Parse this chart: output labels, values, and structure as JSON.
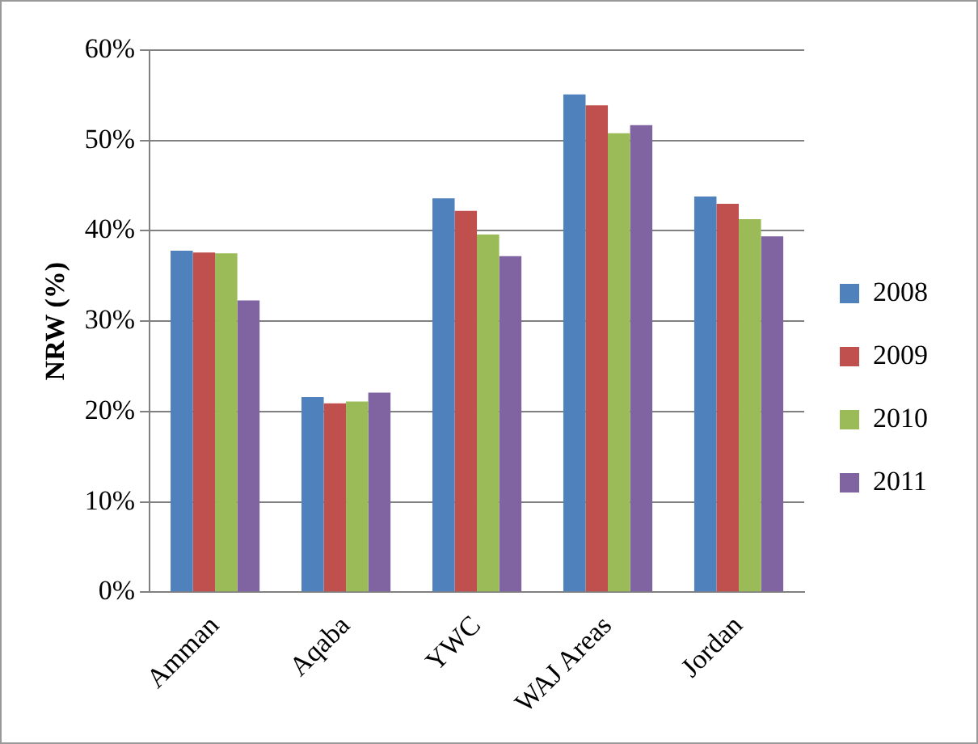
{
  "chart_data": {
    "type": "bar",
    "ylabel": "NRW (%)",
    "categories": [
      "Amman",
      "Aqaba",
      "YWC",
      "WAJ Areas",
      "Jordan"
    ],
    "series": [
      {
        "name": "2008",
        "color": "#4f81bd",
        "values": [
          37.8,
          21.6,
          43.6,
          55.1,
          43.8
        ]
      },
      {
        "name": "2009",
        "color": "#c0504d",
        "values": [
          37.6,
          20.9,
          42.2,
          53.9,
          43.0
        ]
      },
      {
        "name": "2010",
        "color": "#9bbb59",
        "values": [
          37.5,
          21.1,
          39.6,
          50.8,
          41.3
        ]
      },
      {
        "name": "2011",
        "color": "#8064a2",
        "values": [
          32.3,
          22.1,
          37.2,
          51.7,
          39.4
        ]
      }
    ],
    "ylim": [
      0,
      60
    ],
    "yticks": [
      {
        "value": 0,
        "label": "0%"
      },
      {
        "value": 10,
        "label": "10%"
      },
      {
        "value": 20,
        "label": "20%"
      },
      {
        "value": 30,
        "label": "30%"
      },
      {
        "value": 40,
        "label": "40%"
      },
      {
        "value": 50,
        "label": "50%"
      },
      {
        "value": 60,
        "label": "60%"
      }
    ],
    "grid": "y",
    "legend": "right"
  }
}
